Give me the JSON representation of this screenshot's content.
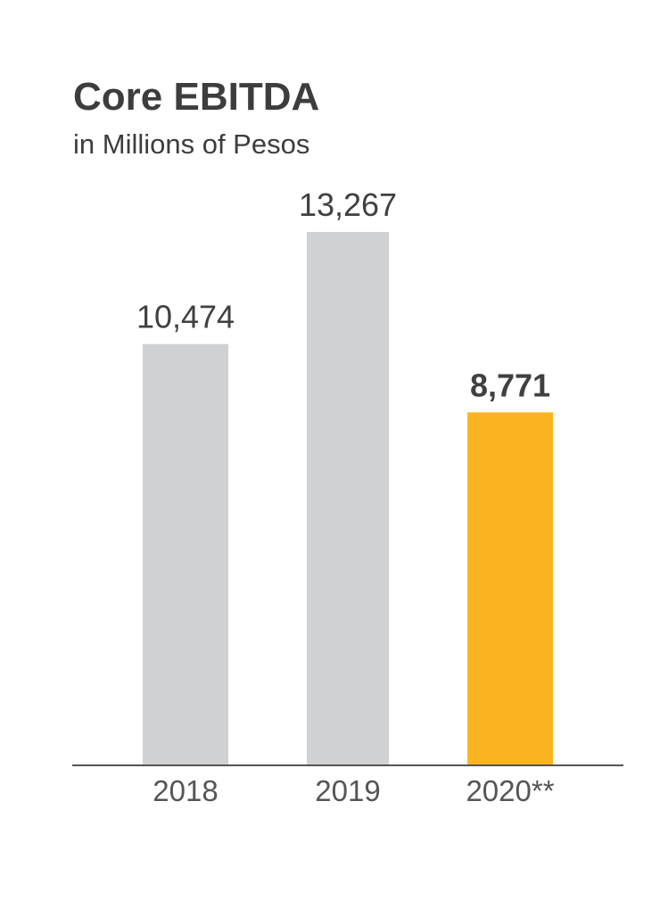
{
  "chart_data": {
    "type": "bar",
    "title": "Core EBITDA",
    "subtitle": "in Millions of Pesos",
    "categories": [
      "2018",
      "2019",
      "2020**"
    ],
    "values": [
      10474,
      13267,
      8771
    ],
    "value_labels": [
      "10,474",
      "13,267",
      "8,771"
    ],
    "highlight_index": 2,
    "colors": {
      "default_bar": "#d0d1d3",
      "highlight_bar": "#fbb41f",
      "axis": "#555555",
      "text": "#3d3d3d"
    },
    "ylim": [
      0,
      13267
    ],
    "grid": false,
    "legend": "none"
  }
}
